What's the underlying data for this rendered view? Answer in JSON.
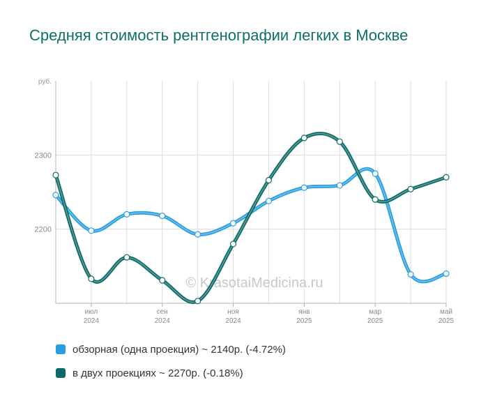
{
  "title": "Средняя стоимость рентгенографии легких в Москве",
  "watermark": "© KrasotaiMedicina.ru",
  "chart_data": {
    "type": "line",
    "y_unit_label": "руб.",
    "ylim": [
      2100,
      2400
    ],
    "y_ticks": [
      2200,
      2300
    ],
    "x_ticks": [
      {
        "i": 1,
        "month": "июл",
        "year": "2024"
      },
      {
        "i": 3,
        "month": "сен",
        "year": "2024"
      },
      {
        "i": 5,
        "month": "ноя",
        "year": "2024"
      },
      {
        "i": 7,
        "month": "янв",
        "year": "2025"
      },
      {
        "i": 9,
        "month": "мар",
        "year": "2025"
      },
      {
        "i": 11,
        "month": "май",
        "year": "2025"
      }
    ],
    "x": [
      "2024-06",
      "2024-07",
      "2024-08",
      "2024-09",
      "2024-10",
      "2024-11",
      "2024-12",
      "2025-01",
      "2025-02",
      "2025-03",
      "2025-04",
      "2025-05"
    ],
    "grid": true,
    "series": [
      {
        "name": "обзорная (одна проекция)",
        "color": "#2a9fe0",
        "values": [
          2246,
          2198,
          2220,
          2218,
          2193,
          2208,
          2238,
          2256,
          2259,
          2275,
          2139,
          2140
        ],
        "legend_text": "обзорная (одна проекция) ~ 2140р. (-4.72%)"
      },
      {
        "name": "в двух проекциях",
        "color": "#0c6b66",
        "values": [
          2273,
          2133,
          2162,
          2131,
          2103,
          2180,
          2266,
          2323,
          2318,
          2240,
          2254,
          2270
        ],
        "legend_text": "в двух проекциях ~ 2270р. (-0.18%)"
      }
    ]
  }
}
